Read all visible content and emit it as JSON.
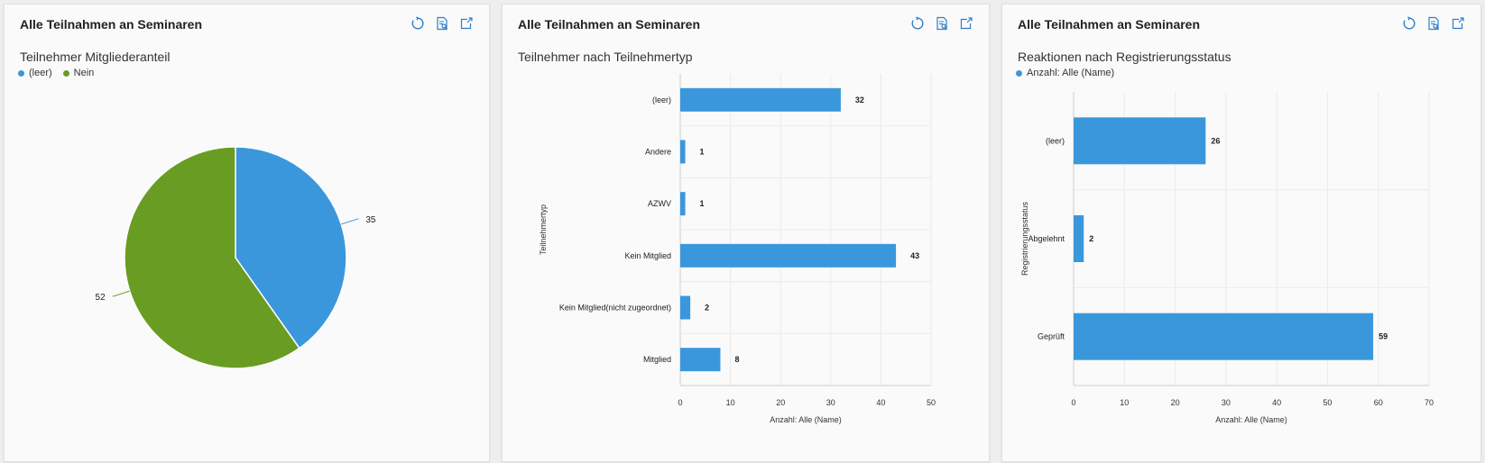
{
  "colors": {
    "blue": "#3a97dc",
    "green": "#699c22",
    "icon": "#2e7ec9"
  },
  "cards": [
    {
      "title": "Alle Teilnahmen an Seminaren",
      "tools": [
        "refresh-icon",
        "view-records-icon",
        "open-external-icon"
      ]
    },
    {
      "title": "Alle Teilnahmen an Seminaren",
      "tools": [
        "refresh-icon",
        "view-records-icon",
        "open-external-icon"
      ]
    },
    {
      "title": "Alle Teilnahmen an Seminaren",
      "tools": [
        "refresh-icon",
        "view-records-icon",
        "open-external-icon"
      ]
    }
  ],
  "chart_data": [
    {
      "type": "pie",
      "title": "Teilnehmer Mitgliederanteil",
      "legend": {
        "placement": "top-left"
      },
      "slices": [
        {
          "label": "(leer)",
          "value": 35,
          "value_label": "35",
          "color": "#3a97dc"
        },
        {
          "label": "Nein",
          "value": 52,
          "value_label": "52",
          "color": "#699c22"
        }
      ]
    },
    {
      "type": "bar",
      "orientation": "horizontal",
      "title": "Teilnehmer nach Teilnehmertyp",
      "xlabel": "Anzahl: Alle (Name)",
      "ylabel": "Teilnehmertyp",
      "categories": [
        "(leer)",
        "Andere",
        "AZWV",
        "Kein Mitglied",
        "Kein Mitglied(nicht zugeordnet)",
        "Mitglied"
      ],
      "values": [
        32,
        1,
        1,
        43,
        2,
        8
      ],
      "value_labels": [
        "32",
        "1",
        "1",
        "43",
        "2",
        "8"
      ],
      "xlim": [
        0,
        50
      ],
      "xticks": [
        0,
        10,
        20,
        30,
        40,
        50
      ],
      "xtick_labels": [
        "0",
        "10",
        "20",
        "30",
        "40",
        "50"
      ],
      "grid": true,
      "color": "#3a97dc"
    },
    {
      "type": "bar",
      "orientation": "horizontal",
      "title": "Reaktionen nach Registrierungsstatus",
      "legend": {
        "placement": "top-left",
        "entries": [
          "Anzahl: Alle (Name)"
        ]
      },
      "xlabel": "Anzahl: Alle (Name)",
      "ylabel": "Registrierungsstatus",
      "categories": [
        "(leer)",
        "Abgelehnt",
        "Geprüft"
      ],
      "values": [
        26,
        2,
        59
      ],
      "value_labels": [
        "26",
        "2",
        "59"
      ],
      "xlim": [
        0,
        70
      ],
      "xticks": [
        0,
        10,
        20,
        30,
        40,
        50,
        60,
        70
      ],
      "xtick_labels": [
        "0",
        "10",
        "20",
        "30",
        "40",
        "50",
        "60",
        "70"
      ],
      "grid": true,
      "color": "#3a97dc"
    }
  ]
}
